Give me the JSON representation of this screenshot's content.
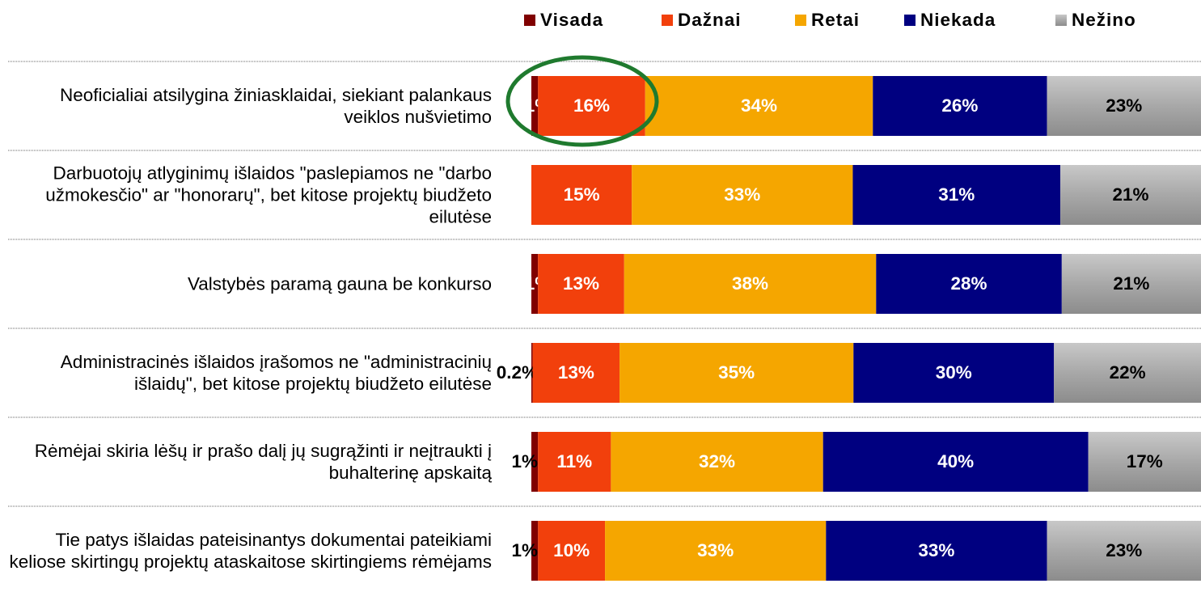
{
  "chart_data": {
    "type": "stacked_bar_horizontal_100",
    "categories": [
      "Neoficialiai atsilygina žiniasklaidai, siekiant palankaus veiklos nušvietimo",
      "Darbuotojų atlyginimų išlaidos \"paslepiamos ne \"darbo užmokesčio\" ar \"honorarų\", bet kitose projektų biudžeto eilutėse",
      "Valstybės paramą gauna be konkurso",
      "Administracinės išlaidos įrašomos ne \"administracinių išlaidų\", bet kitose projektų biudžeto eilutėse",
      "Rėmėjai skiria lėšų ir prašo dalį jų sugrąžinti ir neįtraukti į buhalterinę apskaitą",
      "Tie patys išlaidas pateisinantys dokumentai pateikiami keliose skirtingų projektų ataskaitose skirtingiems rėmėjams"
    ],
    "series": [
      {
        "name": "Visada",
        "color": "#800000",
        "values": [
          1,
          null,
          1,
          0.2,
          1,
          1
        ],
        "value_labels": [
          "1%",
          null,
          "1%",
          "0.2%",
          "1%",
          "1%"
        ]
      },
      {
        "name": "Dažnai",
        "color": "#f2400c",
        "values": [
          16,
          15,
          13,
          13,
          11,
          10
        ],
        "value_labels": [
          "16%",
          "15%",
          "13%",
          "13%",
          "11%",
          "10%"
        ]
      },
      {
        "name": "Retai",
        "color": "#f5a600",
        "values": [
          34,
          33,
          38,
          35,
          32,
          33
        ],
        "value_labels": [
          "34%",
          "33%",
          "38%",
          "35%",
          "32%",
          "33%"
        ]
      },
      {
        "name": "Niekada",
        "color": "#000080",
        "values": [
          26,
          31,
          28,
          30,
          40,
          33
        ],
        "value_labels": [
          "26%",
          "31%",
          "28%",
          "30%",
          "40%",
          "33%"
        ]
      },
      {
        "name": "Nežino",
        "color": "#a6a6a6",
        "values": [
          23,
          21,
          21,
          22,
          17,
          23
        ],
        "value_labels": [
          "23%",
          "21%",
          "21%",
          "22%",
          "17%",
          "23%"
        ]
      }
    ],
    "legend": "top"
  }
}
